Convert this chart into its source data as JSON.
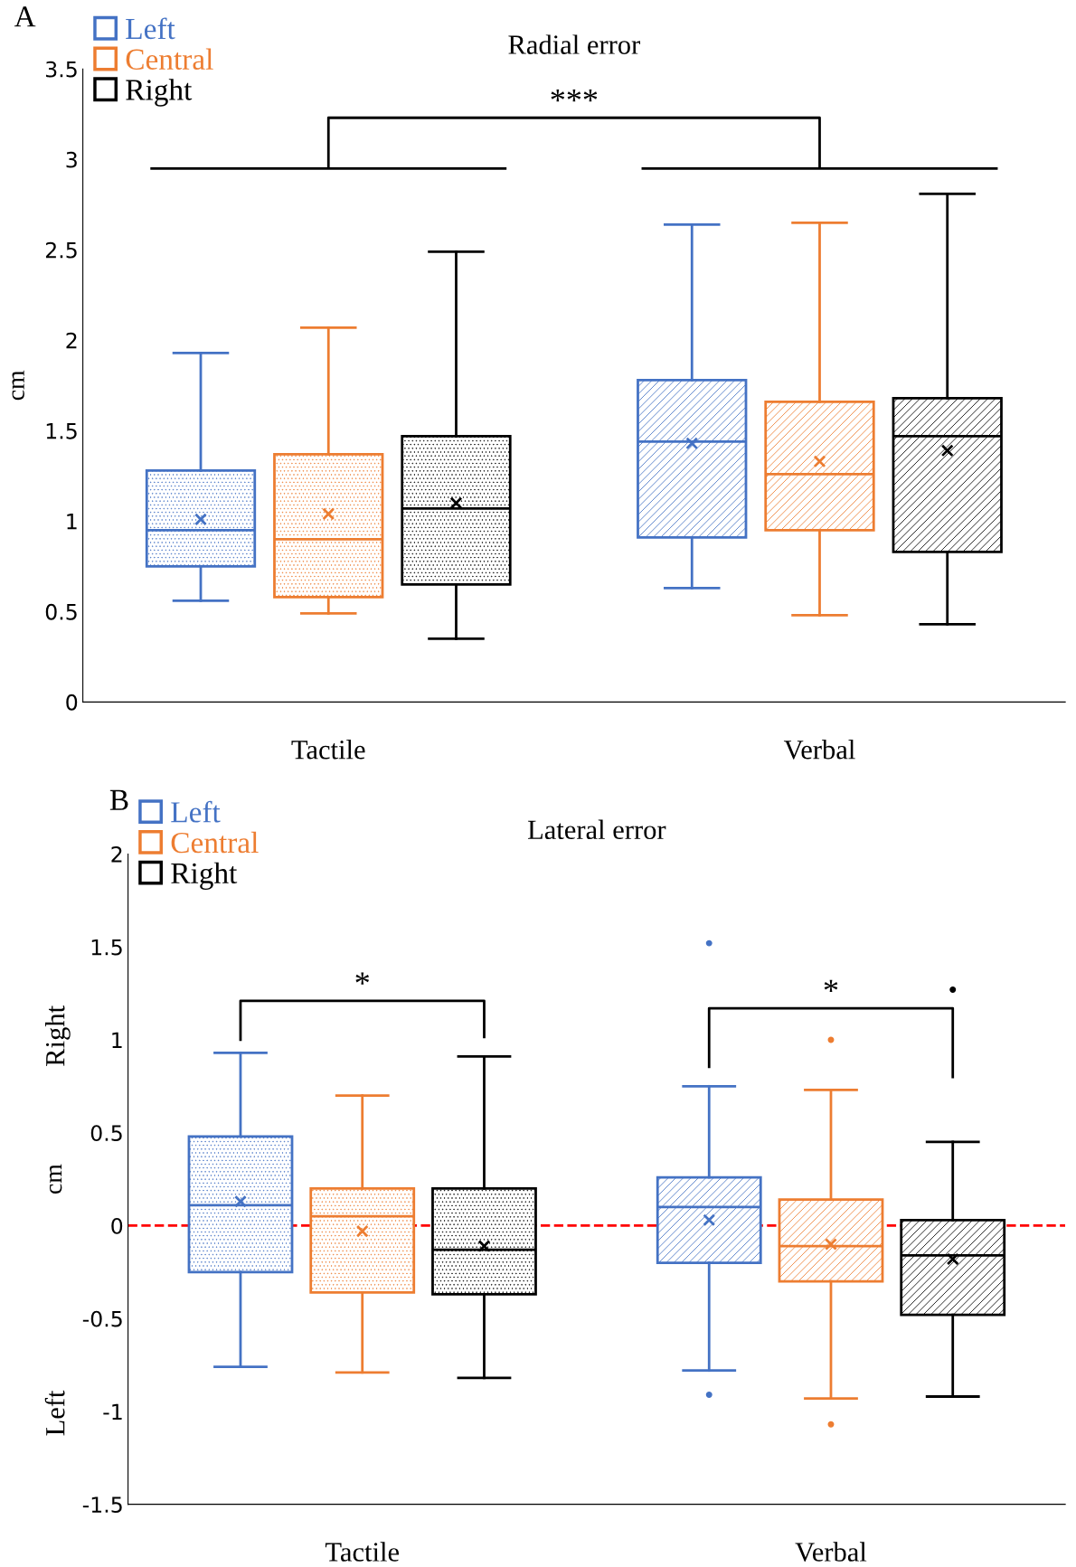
{
  "chart_data": [
    {
      "type": "box",
      "title": "Radial error",
      "ylabel": "cm",
      "categories": [
        "Tactile",
        "Verbal"
      ],
      "series": [
        {
          "name": "Left",
          "color": "#4472c4",
          "boxes": [
            {
              "low": 0.56,
              "q1": 0.75,
              "median": 0.95,
              "q3": 1.28,
              "high": 1.93,
              "mean": 1.01
            },
            {
              "low": 0.63,
              "q1": 0.91,
              "median": 1.44,
              "q3": 1.78,
              "high": 2.64,
              "mean": 1.43
            }
          ]
        },
        {
          "name": "Central",
          "color": "#ed7d31",
          "boxes": [
            {
              "low": 0.49,
              "q1": 0.58,
              "median": 0.9,
              "q3": 1.37,
              "high": 2.07,
              "mean": 1.04
            },
            {
              "low": 0.48,
              "q1": 0.95,
              "median": 1.26,
              "q3": 1.66,
              "high": 2.65,
              "mean": 1.33
            }
          ]
        },
        {
          "name": "Right",
          "color": "#000000",
          "boxes": [
            {
              "low": 0.35,
              "q1": 0.65,
              "median": 1.07,
              "q3": 1.47,
              "high": 2.49,
              "mean": 1.1
            },
            {
              "low": 0.43,
              "q1": 0.83,
              "median": 1.47,
              "q3": 1.68,
              "high": 2.81,
              "mean": 1.39
            }
          ]
        }
      ],
      "ylim": [
        0,
        3.5
      ],
      "yticks": [
        0,
        0.5,
        1,
        1.5,
        2,
        2.5,
        3,
        3.5
      ],
      "grid": false,
      "legend": "top left",
      "annotations": [
        "A",
        "***"
      ]
    },
    {
      "type": "box",
      "title": "Lateral error",
      "ylabel": "cm",
      "categories": [
        "Tactile",
        "Verbal"
      ],
      "series": [
        {
          "name": "Left",
          "color": "#4472c4",
          "boxes": [
            {
              "low": -0.76,
              "q1": -0.25,
              "median": 0.11,
              "q3": 0.48,
              "high": 0.93,
              "mean": 0.13
            },
            {
              "low": -0.78,
              "q1": -0.2,
              "median": 0.1,
              "q3": 0.26,
              "high": 0.75,
              "mean": 0.03,
              "outliers": [
                1.52,
                -0.91
              ]
            }
          ]
        },
        {
          "name": "Central",
          "color": "#ed7d31",
          "boxes": [
            {
              "low": -0.79,
              "q1": -0.36,
              "median": 0.05,
              "q3": 0.2,
              "high": 0.7,
              "mean": -0.03
            },
            {
              "low": -0.93,
              "q1": -0.3,
              "median": -0.11,
              "q3": 0.14,
              "high": 0.73,
              "mean": -0.1,
              "outliers": [
                1.0,
                -1.07
              ]
            }
          ]
        },
        {
          "name": "Right",
          "color": "#000000",
          "boxes": [
            {
              "low": -0.82,
              "q1": -0.37,
              "median": -0.13,
              "q3": 0.2,
              "high": 0.91,
              "mean": -0.11
            },
            {
              "low": -0.92,
              "q1": -0.48,
              "median": -0.16,
              "q3": 0.03,
              "high": 0.45,
              "mean": -0.18,
              "outliers": [
                1.27
              ]
            }
          ]
        }
      ],
      "ylim": [
        -1.5,
        2
      ],
      "yticks": [
        -1.5,
        -1,
        -0.5,
        0,
        0.5,
        1,
        1.5,
        2
      ],
      "grid": false,
      "legend": "top left",
      "ref_lines": [
        {
          "axis": "y",
          "value": 0,
          "color": "#ff0000",
          "line_style": "dashed"
        }
      ],
      "annotations": [
        "B",
        "*",
        "*",
        "Right",
        "Left"
      ]
    }
  ]
}
